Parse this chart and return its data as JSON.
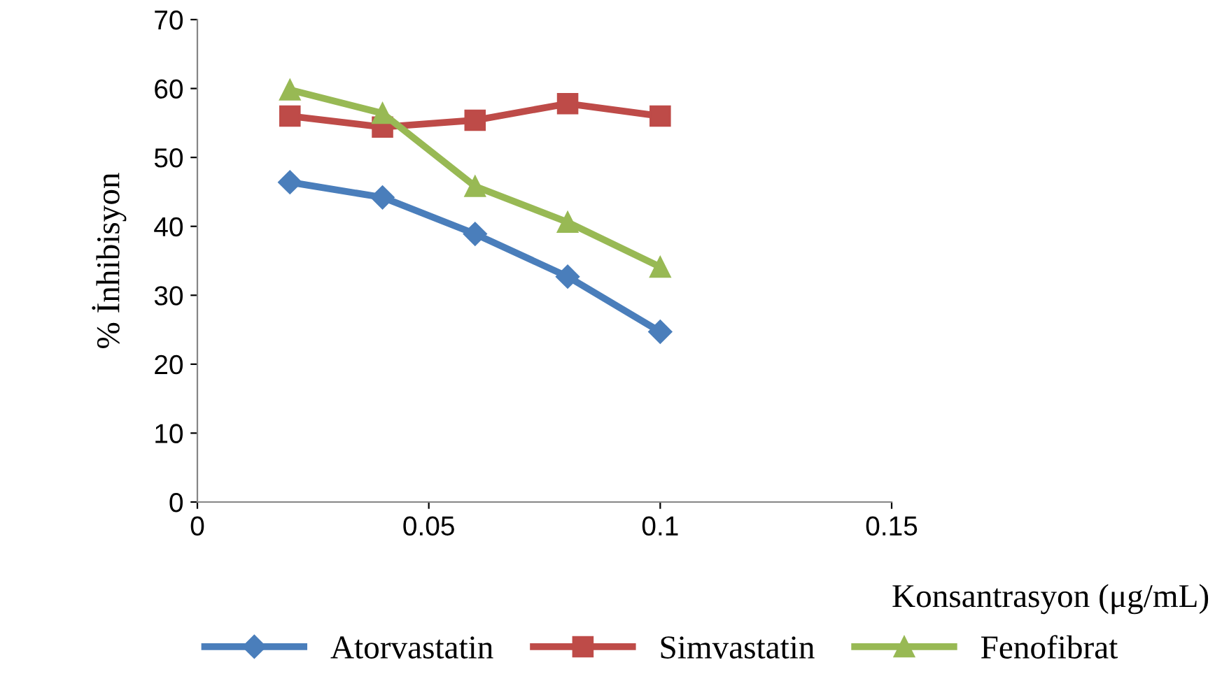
{
  "chart_data": {
    "type": "line",
    "xlabel": "Konsantrasyon (μg/mL)",
    "ylabel": "% İnhibisyon",
    "x": [
      0.02,
      0.04,
      0.06,
      0.08,
      0.1
    ],
    "xlim": [
      0,
      0.15
    ],
    "xticks": [
      0,
      0.05,
      0.1,
      0.15
    ],
    "ylim": [
      0,
      70
    ],
    "yticks": [
      0,
      10,
      20,
      30,
      40,
      50,
      60,
      70
    ],
    "grid": false,
    "legend": "bottom",
    "series": [
      {
        "name": "Atorvastatin",
        "color": "#4a7ebb",
        "marker": "diamond",
        "values": [
          46.4,
          44.2,
          38.9,
          32.7,
          24.7
        ]
      },
      {
        "name": "Simvastatin",
        "color": "#be4b48",
        "marker": "square",
        "values": [
          56,
          54.4,
          55.4,
          57.8,
          56
        ]
      },
      {
        "name": "Fenofibrat",
        "color": "#98b954",
        "marker": "triangle",
        "values": [
          59.8,
          56.4,
          45.8,
          40.6,
          34.1
        ]
      }
    ]
  }
}
